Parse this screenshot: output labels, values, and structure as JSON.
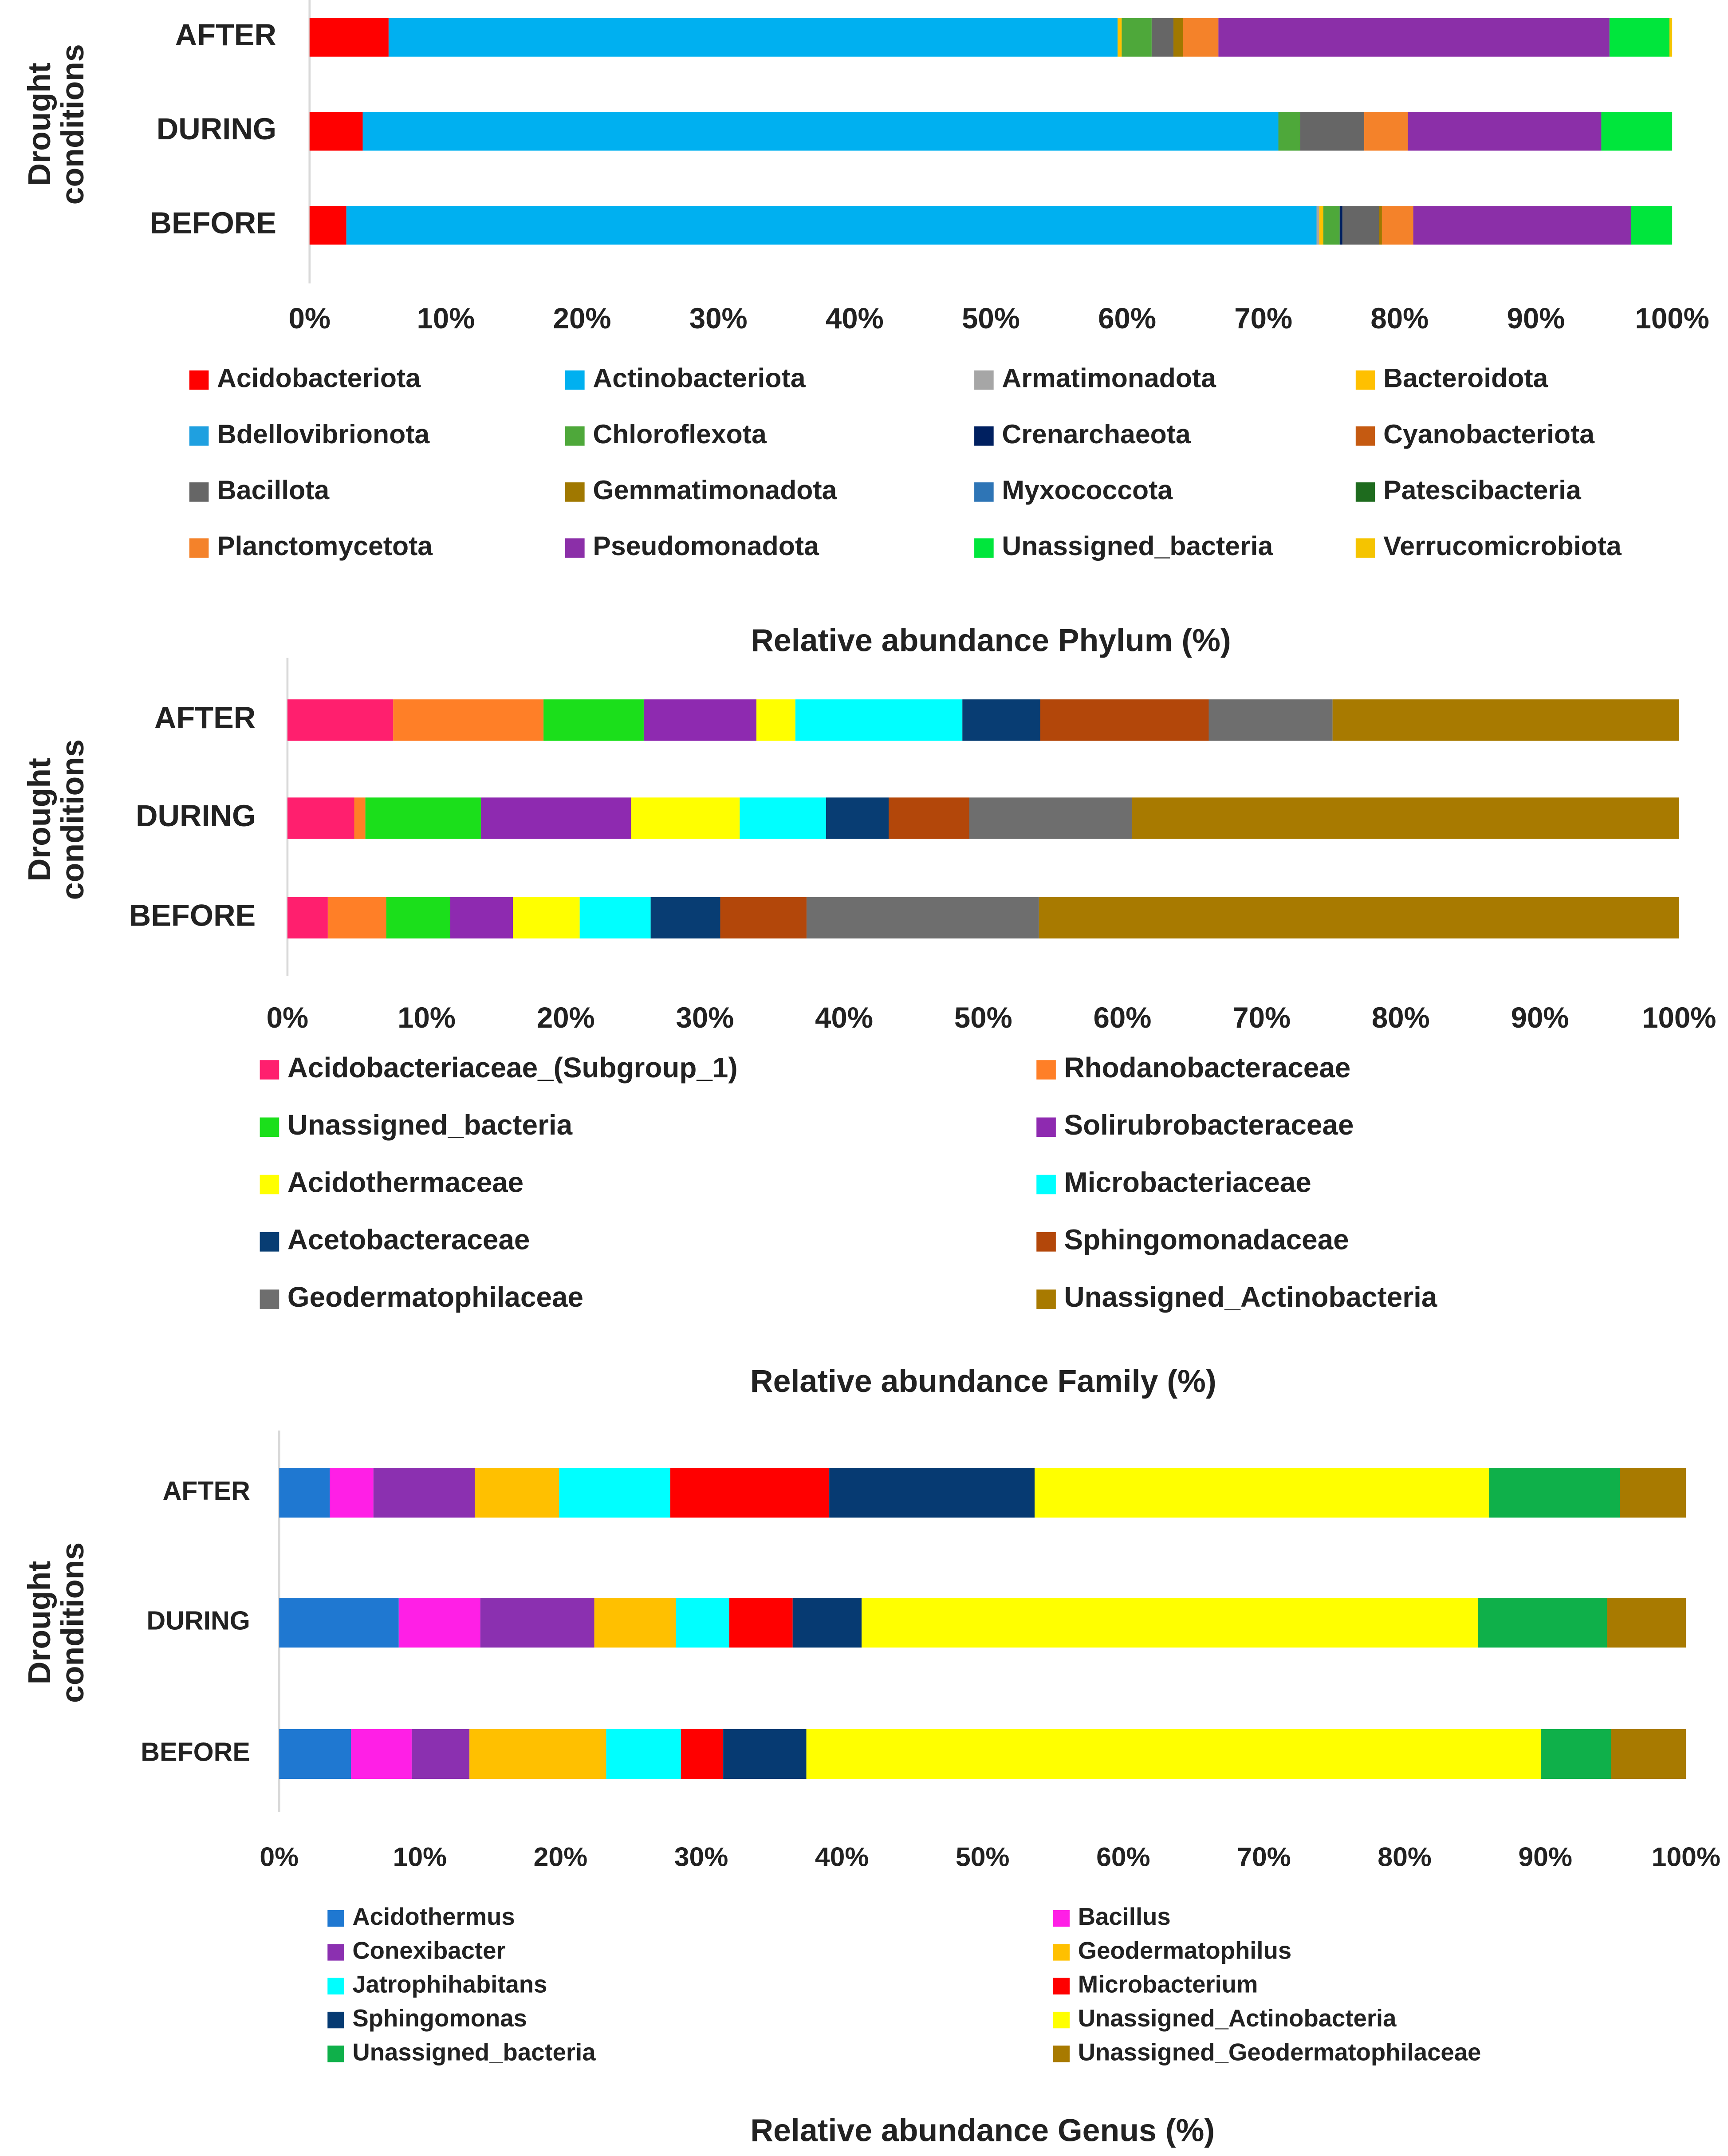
{
  "chart_data": [
    {
      "type": "bar",
      "orientation": "horizontal",
      "stacked": "percent",
      "title": "Relative abundance Phylum (%)",
      "ylabel": "Drought conditions",
      "xlabel": "",
      "categories": [
        "AFTER",
        "DURING",
        "BEFORE"
      ],
      "x_ticks": [
        "0%",
        "10%",
        "20%",
        "30%",
        "40%",
        "50%",
        "60%",
        "70%",
        "80%",
        "90%",
        "100%"
      ],
      "xlim": [
        0,
        100
      ],
      "legend_columns": 4,
      "series": [
        {
          "name": "Acidobacteriota",
          "color": "#ff0000",
          "values": [
            5.8,
            3.9,
            2.7
          ]
        },
        {
          "name": "Actinobacteriota",
          "color": "#00b0f0",
          "values": [
            53.5,
            67.2,
            71.2
          ]
        },
        {
          "name": "Armatimonadota",
          "color": "#a6a6a6",
          "values": [
            0,
            0,
            0.2
          ]
        },
        {
          "name": "Bacteroidota",
          "color": "#ffc000",
          "values": [
            0.3,
            0,
            0.3
          ]
        },
        {
          "name": "Bdellovibrionota",
          "color": "#1fa0e0",
          "values": [
            0,
            0,
            0
          ]
        },
        {
          "name": "Chloroflexota",
          "color": "#4ea83a",
          "values": [
            2.2,
            1.6,
            1.2
          ]
        },
        {
          "name": "Crenarchaeota",
          "color": "#002060",
          "values": [
            0,
            0,
            0.2
          ]
        },
        {
          "name": "Cyanobacteriota",
          "color": "#c55a11",
          "values": [
            0,
            0,
            0
          ]
        },
        {
          "name": "Bacillota",
          "color": "#666666",
          "values": [
            1.6,
            4.7,
            2.7
          ]
        },
        {
          "name": "Gemmatimonadota",
          "color": "#a07800",
          "values": [
            0.7,
            0,
            0.2
          ]
        },
        {
          "name": "Myxococcota",
          "color": "#2e75b6",
          "values": [
            0,
            0,
            0
          ]
        },
        {
          "name": "Patescibacteria",
          "color": "#1e6b1e",
          "values": [
            0,
            0,
            0
          ]
        },
        {
          "name": "Planctomycetota",
          "color": "#f4822a",
          "values": [
            2.6,
            3.2,
            2.3
          ]
        },
        {
          "name": "Pseudomonadota",
          "color": "#8b2fa8",
          "values": [
            28.7,
            14.2,
            16.0
          ]
        },
        {
          "name": "Unassigned_bacteria",
          "color": "#00e63c",
          "values": [
            4.4,
            5.2,
            3.0
          ]
        },
        {
          "name": "Verrucomicrobiota",
          "color": "#f5c400",
          "values": [
            0.2,
            0,
            0
          ]
        }
      ]
    },
    {
      "type": "bar",
      "orientation": "horizontal",
      "stacked": "percent",
      "title": "Relative abundance Family (%)",
      "ylabel": "Drought conditions",
      "xlabel": "",
      "categories": [
        "AFTER",
        "DURING",
        "BEFORE"
      ],
      "x_ticks": [
        "0%",
        "10%",
        "20%",
        "30%",
        "40%",
        "50%",
        "60%",
        "70%",
        "80%",
        "90%",
        "100%"
      ],
      "xlim": [
        0,
        100
      ],
      "legend_columns": 2,
      "series": [
        {
          "name": "Acidobacteriaceae_(Subgroup_1)",
          "color": "#ff1f6e",
          "values": [
            7.6,
            4.8,
            2.9
          ]
        },
        {
          "name": "Rhodanobacteraceae",
          "color": "#ff7f27",
          "values": [
            10.8,
            0.8,
            4.2
          ]
        },
        {
          "name": "Unassigned_bacteria",
          "color": "#1bdf1b",
          "values": [
            7.2,
            8.3,
            4.6
          ]
        },
        {
          "name": "Solirubrobacteraceae",
          "color": "#8e2ab0",
          "values": [
            8.1,
            10.8,
            4.5
          ]
        },
        {
          "name": "Acidothermaceae",
          "color": "#ffff00",
          "values": [
            2.8,
            7.8,
            4.8
          ]
        },
        {
          "name": "Microbacteriaceae",
          "color": "#00ffff",
          "values": [
            12.0,
            6.2,
            5.1
          ]
        },
        {
          "name": "Acetobacteraceae",
          "color": "#083d73",
          "values": [
            5.6,
            4.5,
            5.0
          ]
        },
        {
          "name": "Sphingomonadaceae",
          "color": "#b3470a",
          "values": [
            12.1,
            5.8,
            6.2
          ]
        },
        {
          "name": "Geodermatophilaceae",
          "color": "#6e6e6e",
          "values": [
            8.9,
            11.7,
            16.7
          ]
        },
        {
          "name": "Unassigned_Actinobacteria",
          "color": "#a87a00",
          "values": [
            24.9,
            39.3,
            46.0
          ]
        }
      ]
    },
    {
      "type": "bar",
      "orientation": "horizontal",
      "stacked": "percent",
      "title": "Relative abundance Genus (%)",
      "ylabel": "Drought conditions",
      "xlabel": "",
      "categories": [
        "AFTER",
        "DURING",
        "BEFORE"
      ],
      "x_ticks": [
        "0%",
        "10%",
        "20%",
        "30%",
        "40%",
        "50%",
        "60%",
        "70%",
        "80%",
        "90%",
        "100%"
      ],
      "xlim": [
        0,
        100
      ],
      "legend_columns": 2,
      "series": [
        {
          "name": "Acidothermus",
          "color": "#1f78d1",
          "values": [
            3.6,
            8.5,
            5.1
          ]
        },
        {
          "name": "Bacillus",
          "color": "#ff1fe6",
          "values": [
            3.1,
            5.8,
            4.3
          ]
        },
        {
          "name": "Conexibacter",
          "color": "#8b30b0",
          "values": [
            7.2,
            8.1,
            4.1
          ]
        },
        {
          "name": "Geodermatophilus",
          "color": "#ffc000",
          "values": [
            6.0,
            5.8,
            9.7
          ]
        },
        {
          "name": "Jatrophihabitans",
          "color": "#00ffff",
          "values": [
            7.9,
            3.8,
            5.3
          ]
        },
        {
          "name": "Microbacterium",
          "color": "#ff0000",
          "values": [
            11.3,
            4.5,
            3.0
          ]
        },
        {
          "name": "Sphingomonas",
          "color": "#063a72",
          "values": [
            14.6,
            4.9,
            5.9
          ]
        },
        {
          "name": "Unassigned_Actinobacteria",
          "color": "#ffff00",
          "values": [
            32.3,
            43.8,
            52.1
          ]
        },
        {
          "name": "Unassigned_bacteria",
          "color": "#0fb04a",
          "values": [
            9.3,
            9.2,
            5.0
          ]
        },
        {
          "name": "Unassigned_Geodermatophilaceae",
          "color": "#a87a00",
          "values": [
            4.7,
            5.6,
            5.3
          ]
        }
      ]
    }
  ]
}
